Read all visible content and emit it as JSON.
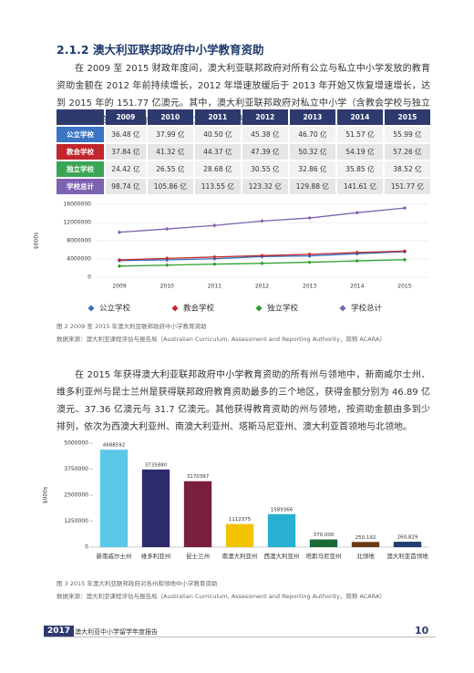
{
  "heading": "2.1.2 澳大利亚联邦政府中小学教育资助",
  "paragraphs": [
    "在 2009 至 2015 财政年度间，澳大利亚联邦政府对所有公立与私立中小学发放的教育资助金额在 2012 年前持续增长，2012 年增速放缓后于 2013 年开始又恢复增速增长，达到 2015 年的 151.77 亿澳元。其中，澳大利亚联邦政府对私立中小学（含教会学校与独立学校）发放的教育资助要多于对公立中小学发放的资助。",
    "在 2015 年获得澳大利亚联邦政府中小学教育资助的所有州与领地中，新南威尔士州、维多利亚州与昆士兰州是获得联邦政府教育资助最多的三个地区，获得金额分别为 46.89 亿澳元、37.36 亿澳元与 31.7 亿澳元。其他获得教育资助的州与领地，按资助金额由多到少排列，依次为西澳大利亚州、南澳大利亚州、塔斯马尼亚州、澳大利亚首领地与北领地。"
  ],
  "table": {
    "columns": [
      "2009",
      "2010",
      "2011",
      "2012",
      "2013",
      "2014",
      "2015"
    ],
    "rows": [
      {
        "label": "公立学校",
        "color": "#3b74c4",
        "cells": [
          "36.48 亿",
          "37.99 亿",
          "40.50 亿",
          "45.38 亿",
          "46.70 亿",
          "51.57 亿",
          "55.99 亿"
        ]
      },
      {
        "label": "教会学校",
        "color": "#c0272d",
        "cells": [
          "37.84 亿",
          "41.32 亿",
          "44.37 亿",
          "47.39 亿",
          "50.32 亿",
          "54.19 亿",
          "57.26 亿"
        ]
      },
      {
        "label": "独立学校",
        "color": "#3aa655",
        "cells": [
          "24.42 亿",
          "26.55 亿",
          "28.68 亿",
          "30.55 亿",
          "32.86 亿",
          "35.85 亿",
          "38.52 亿"
        ]
      },
      {
        "label": "学校总计",
        "color": "#7d62b0",
        "cells": [
          "98.74 亿",
          "105.86 亿",
          "113.55 亿",
          "123.32 亿",
          "129.88 亿",
          "141.61 亿",
          "151.77 亿"
        ]
      }
    ]
  },
  "chart_data": [
    {
      "type": "line",
      "ylabel": "$000s",
      "categories": [
        "2009",
        "2010",
        "2011",
        "2012",
        "2013",
        "2014",
        "2015"
      ],
      "ylim": [
        0,
        16000000
      ],
      "yticks": [
        0,
        4000000,
        8000000,
        12000000,
        16000000
      ],
      "grid": true,
      "series": [
        {
          "name": "公立学校",
          "color": "#2f6fbf",
          "values": [
            3648000,
            3799000,
            4050000,
            4538000,
            4670000,
            5157000,
            5599000
          ]
        },
        {
          "name": "教会学校",
          "color": "#c0272d",
          "values": [
            3784000,
            4132000,
            4437000,
            4739000,
            5032000,
            5419000,
            5726000
          ]
        },
        {
          "name": "独立学校",
          "color": "#2ca02c",
          "values": [
            2442000,
            2655000,
            2868000,
            3055000,
            3286000,
            3585000,
            3852000
          ]
        },
        {
          "name": "学校总计",
          "color": "#7d62b0",
          "values": [
            9874000,
            10586000,
            11355000,
            12332000,
            12988000,
            14161000,
            15177000
          ]
        }
      ]
    },
    {
      "type": "bar",
      "ylabel": "$000s",
      "categories": [
        "新南威尔士州",
        "维多利亚州",
        "昆士兰州",
        "南澳大利亚州",
        "西澳大利亚州",
        "塔斯马尼亚州",
        "北领地",
        "澳大利亚首领地"
      ],
      "values": [
        4688592,
        3735880,
        3170397,
        1112375,
        1589366,
        370000,
        250192,
        260829
      ],
      "value_labels": [
        "4688592",
        "3735880",
        "3170397",
        "1112375",
        "1589366",
        "370,000",
        "250,192",
        "260,829"
      ],
      "colors": [
        "#5bc8e8",
        "#2e2a6e",
        "#7a1f3d",
        "#f2c400",
        "#27b0d0",
        "#1b6b3a",
        "#6b3a12",
        "#1f3f6e"
      ],
      "ylim": [
        0,
        5000000
      ],
      "yticks": [
        0,
        1250000,
        2500000,
        3750000,
        5000000
      ],
      "grid": false
    }
  ],
  "captions": [
    {
      "caption": "图 2 2009 至 2015 年澳大利亚联邦政府中小学教育资助",
      "source": "数据来源：澳大利亚课程评估与报告局（Australian Curriculum, Assessment and Reporting Authority，简称 ACARA）"
    },
    {
      "caption": "图 3 2015 年澳大利亚联邦政府对各州和领地中小学教育资助",
      "source": "数据来源：澳大利亚课程评估与报告局（Australian Curriculum, Assessment and Reporting Authority，简称 ACARA）"
    }
  ],
  "footer": {
    "year": "2017",
    "title": "澳大利亚中小学留学年度报告",
    "page": "10"
  }
}
